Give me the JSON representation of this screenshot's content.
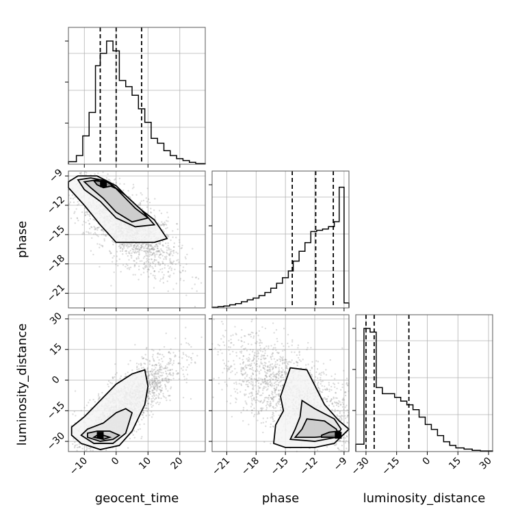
{
  "chart_data": {
    "type": "corner",
    "parameters": [
      {
        "label": "geocent_time",
        "range": [
          -15,
          28
        ],
        "ticks": [
          -10,
          0,
          10,
          20
        ],
        "tick_labels": [
          "−10",
          "0",
          "10",
          "20"
        ],
        "quantiles": [
          -5,
          0,
          8
        ],
        "histogram": {
          "bin_edges": [
            -15,
            -12.5,
            -10.5,
            -8.5,
            -6.5,
            -5,
            -3,
            -1,
            1,
            3,
            5,
            7,
            9,
            11,
            13,
            15,
            17,
            19,
            21,
            23,
            25,
            28
          ],
          "counts": [
            0.02,
            0.07,
            0.23,
            0.42,
            0.8,
            0.9,
            1.0,
            0.92,
            0.68,
            0.63,
            0.56,
            0.45,
            0.34,
            0.21,
            0.17,
            0.11,
            0.07,
            0.045,
            0.03,
            0.015,
            0.005
          ]
        }
      },
      {
        "label": "phase",
        "range": [
          -22.5,
          -8.5
        ],
        "ticks": [
          -21,
          -18,
          -15,
          -12,
          -9
        ],
        "tick_labels": [
          "−21",
          "−18",
          "−15",
          "−12",
          "−9"
        ],
        "quantiles": [
          -14.3,
          -11.9,
          -10.1
        ],
        "histogram": {
          "bin_edges": [
            -22.5,
            -21.9,
            -21.3,
            -20.7,
            -20.1,
            -19.5,
            -18.9,
            -18.3,
            -17.7,
            -17.1,
            -16.5,
            -15.9,
            -15.3,
            -14.7,
            -14.2,
            -13.6,
            -13.0,
            -12.4,
            -11.8,
            -11.2,
            -10.6,
            -10.0,
            -9.5,
            -9.0,
            -8.5
          ],
          "counts": [
            0.005,
            0.01,
            0.015,
            0.025,
            0.035,
            0.05,
            0.065,
            0.08,
            0.1,
            0.125,
            0.16,
            0.2,
            0.245,
            0.3,
            0.38,
            0.46,
            0.53,
            0.62,
            0.63,
            0.64,
            0.66,
            0.7,
            0.98,
            0.04
          ]
        }
      },
      {
        "label": "luminosity_distance",
        "range": [
          -35,
          32
        ],
        "ticks": [
          -30,
          -15,
          0,
          15,
          30
        ],
        "tick_labels": [
          "−30",
          "−15",
          "0",
          "15",
          "30"
        ],
        "quantiles": [
          -30,
          -26,
          -9
        ],
        "histogram": {
          "bin_edges": [
            -35,
            -31,
            -28,
            -25,
            -22,
            -19,
            -16,
            -13,
            -10,
            -7,
            -4,
            -1,
            2,
            5,
            8,
            11,
            14,
            18,
            22,
            26,
            32
          ],
          "counts": [
            0.06,
            1.0,
            0.97,
            0.52,
            0.47,
            0.47,
            0.44,
            0.41,
            0.38,
            0.34,
            0.28,
            0.22,
            0.18,
            0.13,
            0.08,
            0.05,
            0.03,
            0.02,
            0.01,
            0.005
          ]
        }
      }
    ],
    "pairs": [
      {
        "x_param": 0,
        "y_param": 1,
        "scatter": {
          "center": [
            3,
            -14
          ],
          "spread": [
            8,
            3
          ],
          "slope": -0.22,
          "count": 1800
        },
        "density_peak": [
          -4,
          -9.8
        ],
        "contours": [
          [
            [
              -15,
              -9.6
            ],
            [
              -12,
              -9
            ],
            [
              -6,
              -9
            ],
            [
              0,
              -10
            ],
            [
              6,
              -12
            ],
            [
              12,
              -13.5
            ],
            [
              16,
              -15.4
            ],
            [
              12,
              -15.8
            ],
            [
              0,
              -15.8
            ],
            [
              -5,
              -14
            ],
            [
              -10,
              -12
            ],
            [
              -15,
              -10.2
            ]
          ],
          [
            [
              -12,
              -9.4
            ],
            [
              -8,
              -9.2
            ],
            [
              -3,
              -9.5
            ],
            [
              3,
              -11
            ],
            [
              8,
              -12.5
            ],
            [
              12,
              -14
            ],
            [
              6,
              -14.2
            ],
            [
              0,
              -13.3
            ],
            [
              -5,
              -11.6
            ],
            [
              -10,
              -10.4
            ]
          ],
          [
            [
              -10,
              -9.6
            ],
            [
              -6,
              -9.4
            ],
            [
              0,
              -10.3
            ],
            [
              6,
              -12.3
            ],
            [
              10,
              -13.3
            ],
            [
              5,
              -13.7
            ],
            [
              0,
              -12.7
            ],
            [
              -4,
              -11.3
            ],
            [
              -8,
              -10.2
            ]
          ],
          [
            [
              -7,
              -9.5
            ],
            [
              -3,
              -9.6
            ],
            [
              -1,
              -10
            ],
            [
              -4,
              -10.2
            ],
            [
              -6,
              -9.9
            ]
          ]
        ]
      },
      {
        "x_param": 0,
        "y_param": 2,
        "scatter": {
          "center": [
            3,
            -12
          ],
          "spread": [
            8,
            12
          ],
          "slope": 1.2,
          "count": 1800
        },
        "density_peak": [
          -5,
          -27
        ],
        "contours": [
          [
            [
              -14,
              -27
            ],
            [
              -11,
              -31
            ],
            [
              -5,
              -34
            ],
            [
              1,
              -32
            ],
            [
              5,
              -25
            ],
            [
              9,
              -12
            ],
            [
              10,
              -3
            ],
            [
              9,
              5
            ],
            [
              5,
              3
            ],
            [
              0,
              -2
            ],
            [
              -5,
              -10
            ],
            [
              -10,
              -18
            ],
            [
              -14,
              -23
            ]
          ],
          [
            [
              -11,
              -27
            ],
            [
              -7,
              -31
            ],
            [
              -1,
              -31
            ],
            [
              3,
              -26
            ],
            [
              5,
              -16
            ],
            [
              3,
              -14
            ],
            [
              0,
              -16
            ],
            [
              -4,
              -21
            ],
            [
              -9,
              -24
            ]
          ],
          [
            [
              -9,
              -28
            ],
            [
              -5,
              -30
            ],
            [
              -1,
              -29
            ],
            [
              1,
              -27
            ],
            [
              -2,
              -25
            ],
            [
              -6,
              -25
            ],
            [
              -9,
              -26
            ]
          ],
          [
            [
              -7,
              -28
            ],
            [
              -4,
              -29
            ],
            [
              -2,
              -28
            ],
            [
              -4,
              -27
            ],
            [
              -6,
              -27
            ]
          ]
        ]
      },
      {
        "x_param": 1,
        "y_param": 2,
        "scatter": {
          "center": [
            -14,
            -8
          ],
          "spread": [
            4,
            18
          ],
          "slope": -2.5,
          "count": 1800
        },
        "density_peak": [
          -9.6,
          -27
        ],
        "contours": [
          [
            [
              -16.2,
              -31
            ],
            [
              -15,
              -33
            ],
            [
              -12,
              -33
            ],
            [
              -10,
              -31
            ],
            [
              -8.5,
              -24
            ],
            [
              -9.5,
              -20
            ],
            [
              -11,
              -12
            ],
            [
              -12.8,
              5
            ],
            [
              -14.5,
              6
            ],
            [
              -15.5,
              -8
            ],
            [
              -15.2,
              -15
            ],
            [
              -16,
              -22
            ]
          ],
          [
            [
              -14.5,
              -29
            ],
            [
              -12,
              -30
            ],
            [
              -9.8,
              -28
            ],
            [
              -9.3,
              -24
            ],
            [
              -10,
              -19
            ],
            [
              -12,
              -14
            ],
            [
              -13.3,
              -10
            ],
            [
              -13.5,
              -18
            ],
            [
              -14,
              -24
            ]
          ],
          [
            [
              -14,
              -28
            ],
            [
              -12,
              -28
            ],
            [
              -9.5,
              -27
            ],
            [
              -9.8,
              -24
            ],
            [
              -11,
              -20
            ],
            [
              -12.8,
              -19
            ],
            [
              -13.3,
              -24
            ]
          ],
          [
            [
              -11.3,
              -28
            ],
            [
              -9.4,
              -28
            ],
            [
              -9.5,
              -25
            ],
            [
              -10.5,
              -25.5
            ],
            [
              -11.3,
              -27
            ]
          ]
        ]
      }
    ]
  }
}
